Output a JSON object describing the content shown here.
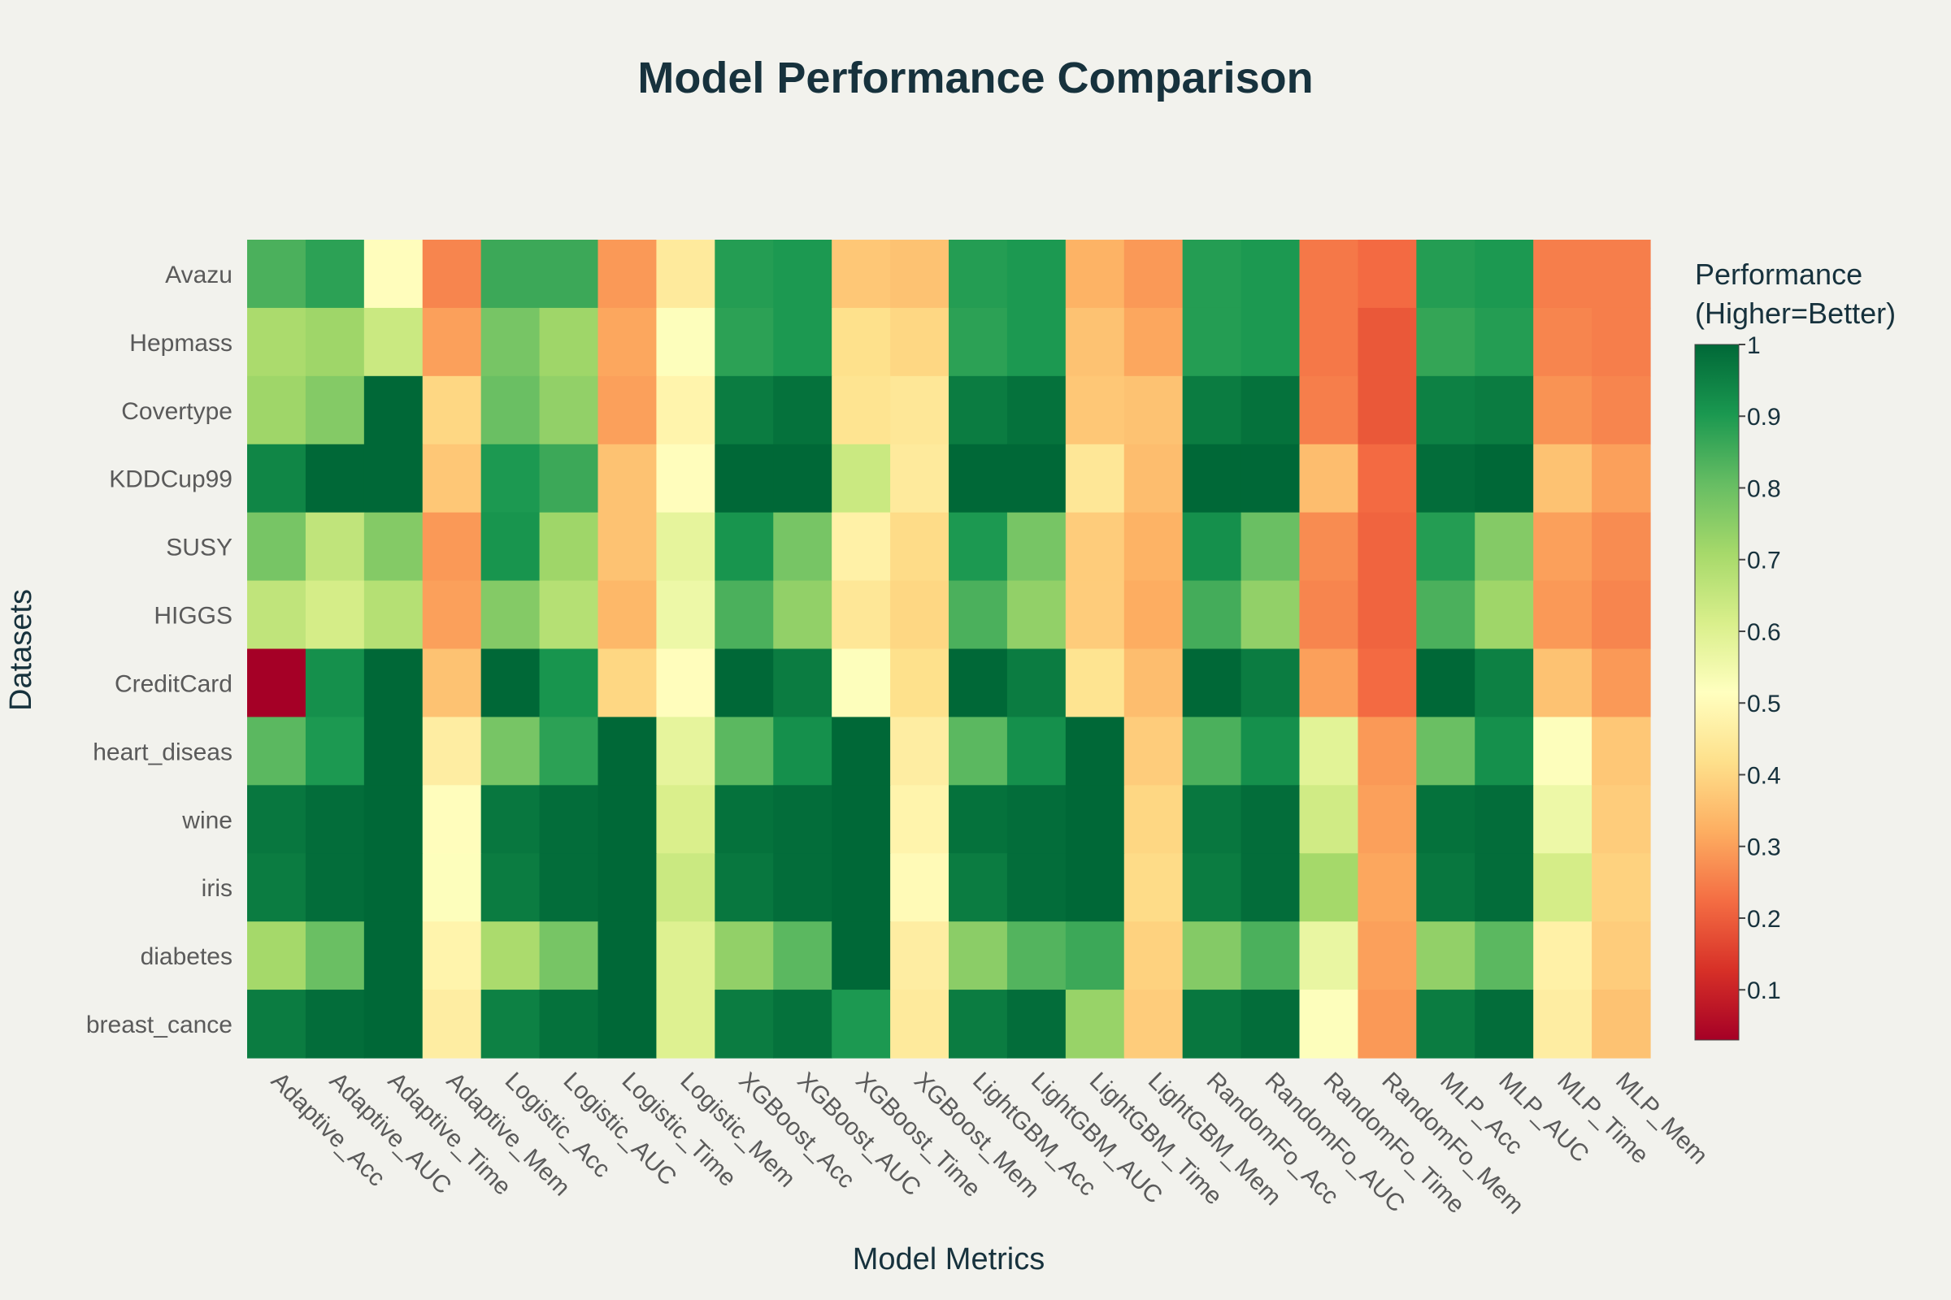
{
  "chart_data": {
    "type": "heatmap",
    "title": "Model Performance Comparison",
    "xlabel": "Model Metrics",
    "ylabel": "Datasets",
    "colorbar_title": [
      "Performance",
      "(Higher=Better)"
    ],
    "colorscale": "RdYlGn",
    "zlim": [
      0.03,
      1
    ],
    "colorbar_ticks": [
      "0.1",
      "0.2",
      "0.3",
      "0.4",
      "0.5",
      "0.6",
      "0.7",
      "0.8",
      "0.9",
      "1"
    ],
    "x": [
      "Adaptive_Acc",
      "Adaptive_AUC",
      "Adaptive_Time",
      "Adaptive_Mem",
      "Logistic_Acc",
      "Logistic_AUC",
      "Logistic_Time",
      "Logistic_Mem",
      "XGBoost_Acc",
      "XGBoost_AUC",
      "XGBoost_Time",
      "XGBoost_Mem",
      "LightGBM_Acc",
      "LightGBM_AUC",
      "LightGBM_Time",
      "LightGBM_Mem",
      "RandomFo_Acc",
      "RandomFo_AUC",
      "RandomFo_Time",
      "RandomFo_Mem",
      "MLP_Acc",
      "MLP_AUC",
      "MLP_Time",
      "MLP_Mem"
    ],
    "y": [
      "Avazu",
      "Hepmass",
      "Covertype",
      "KDDCup99",
      "SUSY",
      "HIGGS",
      "CreditCard",
      "heart_diseas",
      "wine",
      "iris",
      "diabetes",
      "breast_cance"
    ],
    "z": [
      [
        0.84,
        0.88,
        0.51,
        0.26,
        0.86,
        0.86,
        0.29,
        0.45,
        0.89,
        0.9,
        0.37,
        0.36,
        0.89,
        0.9,
        0.33,
        0.29,
        0.89,
        0.9,
        0.24,
        0.22,
        0.89,
        0.9,
        0.25,
        0.25
      ],
      [
        0.7,
        0.72,
        0.64,
        0.3,
        0.78,
        0.72,
        0.31,
        0.52,
        0.88,
        0.9,
        0.42,
        0.4,
        0.88,
        0.9,
        0.36,
        0.31,
        0.89,
        0.9,
        0.24,
        0.19,
        0.87,
        0.89,
        0.26,
        0.25
      ],
      [
        0.72,
        0.76,
        1.0,
        0.4,
        0.8,
        0.74,
        0.3,
        0.48,
        0.96,
        0.98,
        0.43,
        0.44,
        0.96,
        0.98,
        0.37,
        0.36,
        0.96,
        0.98,
        0.25,
        0.19,
        0.95,
        0.96,
        0.28,
        0.26
      ],
      [
        0.94,
        1.0,
        1.0,
        0.37,
        0.9,
        0.86,
        0.36,
        0.51,
        1.0,
        1.0,
        0.64,
        0.45,
        1.0,
        1.0,
        0.44,
        0.35,
        1.0,
        1.0,
        0.35,
        0.22,
        0.99,
        1.0,
        0.36,
        0.3
      ],
      [
        0.78,
        0.66,
        0.76,
        0.29,
        0.91,
        0.72,
        0.36,
        0.58,
        0.91,
        0.78,
        0.47,
        0.41,
        0.9,
        0.78,
        0.38,
        0.33,
        0.92,
        0.8,
        0.27,
        0.21,
        0.89,
        0.76,
        0.3,
        0.27
      ],
      [
        0.66,
        0.62,
        0.68,
        0.3,
        0.76,
        0.68,
        0.34,
        0.56,
        0.84,
        0.74,
        0.44,
        0.4,
        0.84,
        0.74,
        0.38,
        0.32,
        0.85,
        0.74,
        0.26,
        0.21,
        0.84,
        0.72,
        0.29,
        0.26
      ],
      [
        0.03,
        0.92,
        1.0,
        0.36,
        1.0,
        0.91,
        0.4,
        0.51,
        1.0,
        0.96,
        0.52,
        0.42,
        1.0,
        0.96,
        0.43,
        0.35,
        1.0,
        0.96,
        0.3,
        0.22,
        1.0,
        0.95,
        0.36,
        0.29
      ],
      [
        0.82,
        0.9,
        1.0,
        0.46,
        0.78,
        0.88,
        1.0,
        0.58,
        0.82,
        0.92,
        1.0,
        0.46,
        0.82,
        0.92,
        1.0,
        0.38,
        0.84,
        0.92,
        0.59,
        0.29,
        0.8,
        0.92,
        0.52,
        0.37
      ],
      [
        0.97,
        0.99,
        1.0,
        0.51,
        0.97,
        0.99,
        1.0,
        0.61,
        0.98,
        0.99,
        1.0,
        0.48,
        0.98,
        0.99,
        1.0,
        0.4,
        0.97,
        0.99,
        0.63,
        0.3,
        0.98,
        0.99,
        0.56,
        0.38
      ],
      [
        0.96,
        0.99,
        1.0,
        0.52,
        0.96,
        0.99,
        1.0,
        0.64,
        0.97,
        0.99,
        1.0,
        0.5,
        0.96,
        0.99,
        1.0,
        0.41,
        0.96,
        0.99,
        0.71,
        0.31,
        0.97,
        0.99,
        0.62,
        0.39
      ],
      [
        0.71,
        0.8,
        1.0,
        0.48,
        0.7,
        0.78,
        1.0,
        0.6,
        0.74,
        0.82,
        1.0,
        0.46,
        0.75,
        0.83,
        0.86,
        0.39,
        0.76,
        0.84,
        0.57,
        0.3,
        0.74,
        0.82,
        0.47,
        0.38
      ],
      [
        0.96,
        0.99,
        1.0,
        0.46,
        0.95,
        0.98,
        1.0,
        0.6,
        0.96,
        0.98,
        0.9,
        0.45,
        0.96,
        0.99,
        0.73,
        0.38,
        0.97,
        0.99,
        0.52,
        0.29,
        0.96,
        0.99,
        0.46,
        0.36
      ]
    ]
  }
}
